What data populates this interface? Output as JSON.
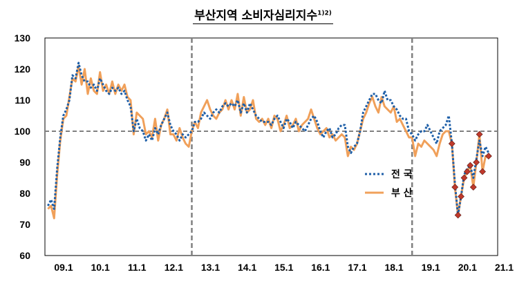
{
  "title": "부산지역 소비자심리지수",
  "title_sup": "1)2)",
  "chart_data": {
    "type": "line",
    "title": "부산지역 소비자심리지수",
    "ylim": [
      60,
      130
    ],
    "yticks": [
      "130",
      "120",
      "110",
      "100",
      "90",
      "80",
      "70",
      "60"
    ],
    "xticks": [
      "09.1",
      "10.1",
      "11.1",
      "12.1",
      "13.1",
      "14.1",
      "15.1",
      "16.1",
      "17.1",
      "18.1",
      "19.1",
      "20.1",
      "21.1"
    ],
    "x_range": [
      2009.0,
      2021.33
    ],
    "reference_line": 100,
    "vertical_markers": [
      2013.0,
      2019.0
    ],
    "series": [
      {
        "name": "전 국",
        "color": "#1e5fa8",
        "style": "dotted",
        "points": [
          [
            2009.083,
            76
          ],
          [
            2009.167,
            78
          ],
          [
            2009.25,
            75
          ],
          [
            2009.333,
            88
          ],
          [
            2009.417,
            98
          ],
          [
            2009.5,
            105
          ],
          [
            2009.583,
            107
          ],
          [
            2009.667,
            110
          ],
          [
            2009.75,
            118
          ],
          [
            2009.833,
            117
          ],
          [
            2009.917,
            122
          ],
          [
            2010.0,
            118
          ],
          [
            2010.083,
            116
          ],
          [
            2010.167,
            116
          ],
          [
            2010.25,
            114
          ],
          [
            2010.333,
            115
          ],
          [
            2010.417,
            113
          ],
          [
            2010.5,
            117
          ],
          [
            2010.583,
            115
          ],
          [
            2010.667,
            113
          ],
          [
            2010.75,
            112
          ],
          [
            2010.833,
            114
          ],
          [
            2010.917,
            113
          ],
          [
            2011.0,
            114
          ],
          [
            2011.083,
            112
          ],
          [
            2011.167,
            113
          ],
          [
            2011.25,
            110
          ],
          [
            2011.333,
            108
          ],
          [
            2011.417,
            100
          ],
          [
            2011.5,
            104
          ],
          [
            2011.583,
            101
          ],
          [
            2011.667,
            100
          ],
          [
            2011.75,
            97
          ],
          [
            2011.833,
            99
          ],
          [
            2011.917,
            97
          ],
          [
            2012.0,
            101
          ],
          [
            2012.083,
            99
          ],
          [
            2012.167,
            102
          ],
          [
            2012.25,
            104
          ],
          [
            2012.333,
            106
          ],
          [
            2012.417,
            102
          ],
          [
            2012.5,
            100
          ],
          [
            2012.583,
            99
          ],
          [
            2012.667,
            97
          ],
          [
            2012.75,
            99
          ],
          [
            2012.833,
            98
          ],
          [
            2012.917,
            99
          ],
          [
            2013.0,
            100
          ],
          [
            2013.083,
            103
          ],
          [
            2013.167,
            103
          ],
          [
            2013.25,
            104
          ],
          [
            2013.333,
            106
          ],
          [
            2013.417,
            105
          ],
          [
            2013.5,
            104
          ],
          [
            2013.583,
            106
          ],
          [
            2013.667,
            107
          ],
          [
            2013.75,
            106
          ],
          [
            2013.833,
            108
          ],
          [
            2013.917,
            109
          ],
          [
            2014.0,
            108
          ],
          [
            2014.083,
            109
          ],
          [
            2014.167,
            108
          ],
          [
            2014.25,
            110
          ],
          [
            2014.333,
            106
          ],
          [
            2014.417,
            109
          ],
          [
            2014.5,
            106
          ],
          [
            2014.583,
            109
          ],
          [
            2014.667,
            107
          ],
          [
            2014.75,
            105
          ],
          [
            2014.833,
            104
          ],
          [
            2014.917,
            103
          ],
          [
            2015.0,
            103
          ],
          [
            2015.083,
            103
          ],
          [
            2015.167,
            102
          ],
          [
            2015.25,
            104
          ],
          [
            2015.333,
            105
          ],
          [
            2015.417,
            103
          ],
          [
            2015.5,
            101
          ],
          [
            2015.583,
            104
          ],
          [
            2015.667,
            103
          ],
          [
            2015.75,
            101
          ],
          [
            2015.833,
            103
          ],
          [
            2015.917,
            102
          ],
          [
            2016.0,
            101
          ],
          [
            2016.083,
            100
          ],
          [
            2016.167,
            102
          ],
          [
            2016.25,
            104
          ],
          [
            2016.333,
            105
          ],
          [
            2016.417,
            103
          ],
          [
            2016.5,
            100
          ],
          [
            2016.583,
            98
          ],
          [
            2016.667,
            100
          ],
          [
            2016.75,
            101
          ],
          [
            2016.833,
            98
          ],
          [
            2016.917,
            99
          ],
          [
            2017.0,
            101
          ],
          [
            2017.083,
            102
          ],
          [
            2017.167,
            102
          ],
          [
            2017.25,
            95
          ],
          [
            2017.333,
            93
          ],
          [
            2017.417,
            95
          ],
          [
            2017.5,
            96
          ],
          [
            2017.583,
            100
          ],
          [
            2017.667,
            106
          ],
          [
            2017.75,
            108
          ],
          [
            2017.833,
            110
          ],
          [
            2017.917,
            112
          ],
          [
            2018.0,
            112
          ],
          [
            2018.083,
            110
          ],
          [
            2018.167,
            109
          ],
          [
            2018.25,
            113
          ],
          [
            2018.333,
            110
          ],
          [
            2018.417,
            110
          ],
          [
            2018.5,
            108
          ],
          [
            2018.583,
            107
          ],
          [
            2018.667,
            105
          ],
          [
            2018.75,
            104
          ],
          [
            2018.833,
            104
          ],
          [
            2018.917,
            100
          ],
          [
            2019.0,
            99
          ],
          [
            2019.083,
            97
          ],
          [
            2019.167,
            99
          ],
          [
            2019.25,
            100
          ],
          [
            2019.333,
            100
          ],
          [
            2019.417,
            102
          ],
          [
            2019.5,
            100
          ],
          [
            2019.583,
            98
          ],
          [
            2019.667,
            96
          ],
          [
            2019.75,
            100
          ],
          [
            2019.833,
            101
          ],
          [
            2019.917,
            102
          ],
          [
            2020.0,
            105
          ],
          [
            2020.083,
            96
          ],
          [
            2020.167,
            83
          ],
          [
            2020.25,
            73
          ],
          [
            2020.333,
            79
          ],
          [
            2020.417,
            86
          ],
          [
            2020.5,
            88
          ],
          [
            2020.583,
            89
          ],
          [
            2020.667,
            85
          ],
          [
            2020.75,
            91
          ],
          [
            2020.833,
            97
          ],
          [
            2020.917,
            92
          ],
          [
            2021.0,
            95
          ],
          [
            2021.083,
            93
          ]
        ]
      },
      {
        "name": "부 산",
        "color": "#f0a05a",
        "style": "solid",
        "points": [
          [
            2009.083,
            75
          ],
          [
            2009.167,
            76
          ],
          [
            2009.25,
            72
          ],
          [
            2009.333,
            86
          ],
          [
            2009.417,
            97
          ],
          [
            2009.5,
            104
          ],
          [
            2009.583,
            105
          ],
          [
            2009.667,
            111
          ],
          [
            2009.75,
            117
          ],
          [
            2009.833,
            116
          ],
          [
            2009.917,
            121
          ],
          [
            2010.0,
            115
          ],
          [
            2010.083,
            120
          ],
          [
            2010.167,
            112
          ],
          [
            2010.25,
            117
          ],
          [
            2010.333,
            113
          ],
          [
            2010.417,
            112
          ],
          [
            2010.5,
            119
          ],
          [
            2010.583,
            113
          ],
          [
            2010.667,
            115
          ],
          [
            2010.75,
            112
          ],
          [
            2010.833,
            116
          ],
          [
            2010.917,
            112
          ],
          [
            2011.0,
            115
          ],
          [
            2011.083,
            113
          ],
          [
            2011.167,
            115
          ],
          [
            2011.25,
            111
          ],
          [
            2011.333,
            110
          ],
          [
            2011.417,
            99
          ],
          [
            2011.5,
            106
          ],
          [
            2011.583,
            105
          ],
          [
            2011.667,
            104
          ],
          [
            2011.75,
            99
          ],
          [
            2011.833,
            100
          ],
          [
            2011.917,
            98
          ],
          [
            2012.0,
            104
          ],
          [
            2012.083,
            97
          ],
          [
            2012.167,
            102
          ],
          [
            2012.25,
            104
          ],
          [
            2012.333,
            107
          ],
          [
            2012.417,
            99
          ],
          [
            2012.5,
            99
          ],
          [
            2012.583,
            97
          ],
          [
            2012.667,
            101
          ],
          [
            2012.75,
            98
          ],
          [
            2012.833,
            96
          ],
          [
            2012.917,
            95
          ],
          [
            2013.0,
            100
          ],
          [
            2013.083,
            103
          ],
          [
            2013.167,
            101
          ],
          [
            2013.25,
            106
          ],
          [
            2013.333,
            108
          ],
          [
            2013.417,
            110
          ],
          [
            2013.5,
            107
          ],
          [
            2013.583,
            105
          ],
          [
            2013.667,
            104
          ],
          [
            2013.75,
            106
          ],
          [
            2013.833,
            107
          ],
          [
            2013.917,
            110
          ],
          [
            2014.0,
            107
          ],
          [
            2014.083,
            110
          ],
          [
            2014.167,
            107
          ],
          [
            2014.25,
            112
          ],
          [
            2014.333,
            105
          ],
          [
            2014.417,
            111
          ],
          [
            2014.5,
            106
          ],
          [
            2014.583,
            107
          ],
          [
            2014.667,
            110
          ],
          [
            2014.75,
            104
          ],
          [
            2014.833,
            103
          ],
          [
            2014.917,
            104
          ],
          [
            2015.0,
            102
          ],
          [
            2015.083,
            104
          ],
          [
            2015.167,
            101
          ],
          [
            2015.25,
            105
          ],
          [
            2015.333,
            104
          ],
          [
            2015.417,
            100
          ],
          [
            2015.5,
            102
          ],
          [
            2015.583,
            105
          ],
          [
            2015.667,
            101
          ],
          [
            2015.75,
            102
          ],
          [
            2015.833,
            104
          ],
          [
            2015.917,
            100
          ],
          [
            2016.0,
            102
          ],
          [
            2016.083,
            103
          ],
          [
            2016.167,
            104
          ],
          [
            2016.25,
            107
          ],
          [
            2016.333,
            104
          ],
          [
            2016.417,
            101
          ],
          [
            2016.5,
            99
          ],
          [
            2016.583,
            100
          ],
          [
            2016.667,
            101
          ],
          [
            2016.75,
            98
          ],
          [
            2016.833,
            99
          ],
          [
            2016.917,
            97
          ],
          [
            2017.0,
            98
          ],
          [
            2017.083,
            99
          ],
          [
            2017.167,
            98
          ],
          [
            2017.25,
            92
          ],
          [
            2017.333,
            95
          ],
          [
            2017.417,
            94
          ],
          [
            2017.5,
            96
          ],
          [
            2017.583,
            100
          ],
          [
            2017.667,
            104
          ],
          [
            2017.75,
            106
          ],
          [
            2017.833,
            109
          ],
          [
            2017.917,
            111
          ],
          [
            2018.0,
            108
          ],
          [
            2018.083,
            106
          ],
          [
            2018.167,
            111
          ],
          [
            2018.25,
            108
          ],
          [
            2018.333,
            107
          ],
          [
            2018.417,
            106
          ],
          [
            2018.5,
            108
          ],
          [
            2018.583,
            103
          ],
          [
            2018.667,
            104
          ],
          [
            2018.75,
            102
          ],
          [
            2018.833,
            100
          ],
          [
            2018.917,
            98
          ],
          [
            2019.0,
            98
          ],
          [
            2019.083,
            92
          ],
          [
            2019.167,
            96
          ],
          [
            2019.25,
            95
          ],
          [
            2019.333,
            97
          ],
          [
            2019.417,
            96
          ],
          [
            2019.5,
            95
          ],
          [
            2019.583,
            94
          ],
          [
            2019.667,
            92
          ],
          [
            2019.75,
            96
          ],
          [
            2019.833,
            99
          ],
          [
            2019.917,
            100
          ],
          [
            2020.0,
            100
          ],
          [
            2020.083,
            96
          ],
          [
            2020.167,
            82
          ],
          [
            2020.25,
            73
          ],
          [
            2020.333,
            79
          ],
          [
            2020.417,
            85
          ],
          [
            2020.5,
            87
          ],
          [
            2020.583,
            89
          ],
          [
            2020.667,
            82
          ],
          [
            2020.75,
            90
          ],
          [
            2020.833,
            99
          ],
          [
            2020.917,
            87
          ],
          [
            2021.0,
            92
          ],
          [
            2021.083,
            92
          ]
        ]
      }
    ],
    "highlighted_points": [
      [
        2020.083,
        96
      ],
      [
        2020.167,
        82
      ],
      [
        2020.25,
        73
      ],
      [
        2020.333,
        79
      ],
      [
        2020.417,
        85
      ],
      [
        2020.5,
        87
      ],
      [
        2020.583,
        89
      ],
      [
        2020.667,
        82
      ],
      [
        2020.75,
        90
      ],
      [
        2020.833,
        99
      ],
      [
        2020.917,
        87
      ],
      [
        2021.083,
        92
      ]
    ],
    "highlight_color": "#c0392b"
  }
}
